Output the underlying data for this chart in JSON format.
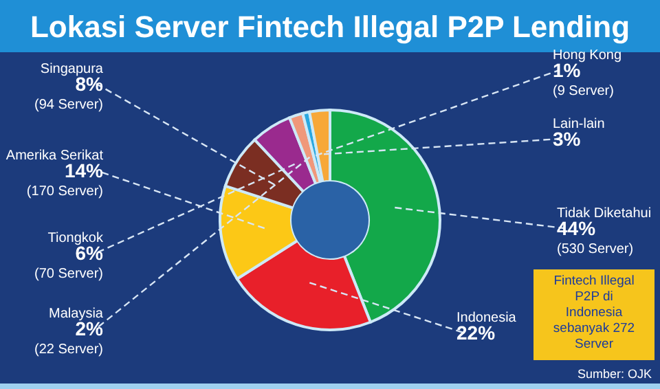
{
  "chart_data": {
    "type": "donut",
    "title": "Lokasi Server Fintech Illegal P2P Lending",
    "categories": [
      "Tidak Diketahui",
      "Indonesia",
      "Amerika Serikat",
      "Singapura",
      "Tiongkok",
      "Malaysia",
      "Hong Kong",
      "Lain-lain"
    ],
    "values": [
      44,
      22,
      14,
      8,
      6,
      2,
      1,
      3
    ],
    "colors": [
      "#13a84a",
      "#e8202a",
      "#fcc816",
      "#7b2e22",
      "#9a2a8e",
      "#f0987a",
      "#2aa8e0",
      "#f7a838"
    ],
    "value_labels": [
      "44%\n(530 Server)",
      "22%",
      "14%\n(170 Server)",
      "8%\n(94 Server)",
      "6%\n(70 Server)",
      "2%\n(22 Server)",
      "1%\n(9 Server)",
      "3%"
    ],
    "annotations": [
      "Fintech Illegal\nP2P di\nIndonesia\nsebanyak 272\nServer",
      "Sumber: OJK"
    ]
  }
}
